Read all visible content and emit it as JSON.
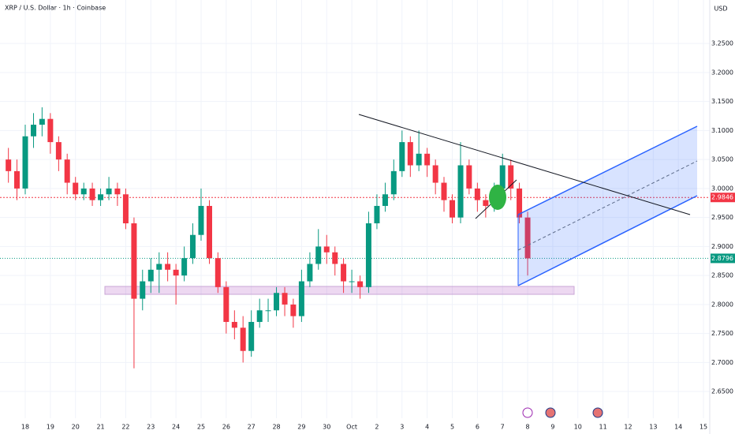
{
  "chart_data": {
    "type": "candlestick",
    "title": "XRP / U.S. Dollar · 1h · Coinbase",
    "currency": "USD",
    "up_color": "#089981",
    "down_color": "#f23645",
    "grid": true,
    "xlim": [
      -1.005,
      27.25
    ],
    "ylim": [
      2.604,
      3.325
    ],
    "xticks": [
      {
        "value": 0,
        "label": "18"
      },
      {
        "value": 1,
        "label": "19"
      },
      {
        "value": 2,
        "label": "20"
      },
      {
        "value": 3,
        "label": "21"
      },
      {
        "value": 4,
        "label": "22"
      },
      {
        "value": 5,
        "label": "23"
      },
      {
        "value": 6,
        "label": "24"
      },
      {
        "value": 7,
        "label": "25"
      },
      {
        "value": 8,
        "label": "26"
      },
      {
        "value": 9,
        "label": "27"
      },
      {
        "value": 10,
        "label": "28"
      },
      {
        "value": 11,
        "label": "29"
      },
      {
        "value": 12,
        "label": "30"
      },
      {
        "value": 13,
        "label": "Oct"
      },
      {
        "value": 14,
        "label": "2"
      },
      {
        "value": 15,
        "label": "3"
      },
      {
        "value": 16,
        "label": "4"
      },
      {
        "value": 17,
        "label": "5"
      },
      {
        "value": 18,
        "label": "6"
      },
      {
        "value": 19,
        "label": "7"
      },
      {
        "value": 20,
        "label": "8"
      },
      {
        "value": 21,
        "label": "9"
      },
      {
        "value": 22,
        "label": "10"
      },
      {
        "value": 23,
        "label": "11"
      },
      {
        "value": 24,
        "label": "12"
      },
      {
        "value": 25,
        "label": "13"
      },
      {
        "value": 26,
        "label": "14"
      },
      {
        "value": 27,
        "label": "15"
      }
    ],
    "yticks": [
      {
        "value": 3.25,
        "label": "3.2500"
      },
      {
        "value": 3.2,
        "label": "3.2000"
      },
      {
        "value": 3.15,
        "label": "3.1500"
      },
      {
        "value": 3.1,
        "label": "3.1000"
      },
      {
        "value": 3.05,
        "label": "3.0500"
      },
      {
        "value": 3.0,
        "label": "3.0000"
      },
      {
        "value": 2.95,
        "label": "2.9500"
      },
      {
        "value": 2.9,
        "label": "2.9000"
      },
      {
        "value": 2.85,
        "label": "2.8500"
      },
      {
        "value": 2.8,
        "label": "2.8000"
      },
      {
        "value": 2.75,
        "label": "2.7500"
      },
      {
        "value": 2.7,
        "label": "2.7000"
      },
      {
        "value": 2.65,
        "label": "2.6500"
      }
    ],
    "price_lines": [
      {
        "value": 2.9846,
        "color": "#f23645"
      },
      {
        "value": 2.8796,
        "color": "#089981"
      }
    ],
    "x": [
      -0.67,
      -0.33,
      0,
      0.33,
      0.67,
      1,
      1.33,
      1.67,
      2,
      2.33,
      2.67,
      3,
      3.33,
      3.67,
      4,
      4.33,
      4.67,
      5,
      5.33,
      5.67,
      6,
      6.33,
      6.67,
      7,
      7.33,
      7.67,
      8,
      8.33,
      8.67,
      9,
      9.33,
      9.67,
      10,
      10.33,
      10.67,
      11,
      11.33,
      11.67,
      12,
      12.33,
      12.67,
      13,
      13.33,
      13.67,
      14,
      14.33,
      14.67,
      15,
      15.33,
      15.67,
      16,
      16.33,
      16.67,
      17,
      17.33,
      17.67,
      18,
      18.33,
      18.67,
      19,
      19.33,
      19.67,
      20
    ],
    "open": [
      3.05,
      3.03,
      3.0,
      3.09,
      3.11,
      3.12,
      3.08,
      3.05,
      3.01,
      2.99,
      3.0,
      2.98,
      2.99,
      3.0,
      2.99,
      2.94,
      2.81,
      2.84,
      2.86,
      2.87,
      2.86,
      2.85,
      2.88,
      2.92,
      2.97,
      2.88,
      2.83,
      2.77,
      2.76,
      2.72,
      2.77,
      2.79,
      2.79,
      2.82,
      2.8,
      2.78,
      2.84,
      2.87,
      2.9,
      2.89,
      2.87,
      2.84,
      2.84,
      2.83,
      2.94,
      2.97,
      2.99,
      3.03,
      3.08,
      3.04,
      3.06,
      3.04,
      3.01,
      2.98,
      2.95,
      3.04,
      3.0,
      2.98,
      2.97,
      3.0,
      3.04,
      3.0,
      2.95
    ],
    "high": [
      3.07,
      3.05,
      3.11,
      3.13,
      3.14,
      3.13,
      3.09,
      3.06,
      3.02,
      3.01,
      3.01,
      3.0,
      3.02,
      3.01,
      3.0,
      2.95,
      2.86,
      2.88,
      2.89,
      2.89,
      2.87,
      2.9,
      2.94,
      3.0,
      2.98,
      2.89,
      2.84,
      2.79,
      2.78,
      2.79,
      2.81,
      2.81,
      2.83,
      2.83,
      2.81,
      2.86,
      2.89,
      2.93,
      2.92,
      2.9,
      2.88,
      2.86,
      2.85,
      2.96,
      2.99,
      3.01,
      3.05,
      3.1,
      3.09,
      3.1,
      3.07,
      3.05,
      3.02,
      2.99,
      3.08,
      3.05,
      3.01,
      2.99,
      3.01,
      3.06,
      3.05,
      3.01,
      2.96
    ],
    "low": [
      3.01,
      2.98,
      2.99,
      3.07,
      3.09,
      3.06,
      3.03,
      2.99,
      2.98,
      2.98,
      2.97,
      2.97,
      2.98,
      2.97,
      2.93,
      2.69,
      2.79,
      2.82,
      2.82,
      2.84,
      2.8,
      2.84,
      2.87,
      2.91,
      2.87,
      2.82,
      2.75,
      2.74,
      2.7,
      2.71,
      2.76,
      2.77,
      2.78,
      2.78,
      2.76,
      2.77,
      2.83,
      2.86,
      2.87,
      2.85,
      2.82,
      2.82,
      2.81,
      2.82,
      2.93,
      2.96,
      2.98,
      3.02,
      3.02,
      3.03,
      3.02,
      2.99,
      2.96,
      2.94,
      2.94,
      2.99,
      2.96,
      2.95,
      2.96,
      2.99,
      2.98,
      2.94,
      2.85
    ],
    "close": [
      3.03,
      3.0,
      3.09,
      3.11,
      3.12,
      3.08,
      3.05,
      3.01,
      2.99,
      3.0,
      2.98,
      2.99,
      3.0,
      2.99,
      2.94,
      2.81,
      2.84,
      2.86,
      2.87,
      2.86,
      2.85,
      2.88,
      2.92,
      2.97,
      2.88,
      2.83,
      2.77,
      2.76,
      2.72,
      2.77,
      2.79,
      2.79,
      2.82,
      2.8,
      2.78,
      2.84,
      2.87,
      2.9,
      2.89,
      2.87,
      2.84,
      2.84,
      2.83,
      2.94,
      2.97,
      2.99,
      3.03,
      3.08,
      3.04,
      3.06,
      3.04,
      3.01,
      2.98,
      2.95,
      3.04,
      3.0,
      2.98,
      2.97,
      3.0,
      3.04,
      3.0,
      2.95,
      2.8796
    ]
  }
}
